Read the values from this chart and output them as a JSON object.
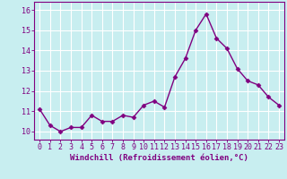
{
  "x": [
    0,
    1,
    2,
    3,
    4,
    5,
    6,
    7,
    8,
    9,
    10,
    11,
    12,
    13,
    14,
    15,
    16,
    17,
    18,
    19,
    20,
    21,
    22,
    23
  ],
  "y": [
    11.1,
    10.3,
    10.0,
    10.2,
    10.2,
    10.8,
    10.5,
    10.5,
    10.8,
    10.7,
    11.3,
    11.5,
    11.2,
    12.7,
    13.6,
    15.0,
    15.8,
    14.6,
    14.1,
    13.1,
    12.5,
    12.3,
    11.7,
    11.3
  ],
  "line_color": "#800080",
  "marker": "D",
  "marker_size": 2.5,
  "line_width": 1.0,
  "xlabel": "Windchill (Refroidissement éolien,°C)",
  "xlabel_fontsize": 6.5,
  "tick_fontsize": 6,
  "ylim": [
    9.6,
    16.4
  ],
  "xlim": [
    -0.5,
    23.5
  ],
  "yticks": [
    10,
    11,
    12,
    13,
    14,
    15,
    16
  ],
  "xticks": [
    0,
    1,
    2,
    3,
    4,
    5,
    6,
    7,
    8,
    9,
    10,
    11,
    12,
    13,
    14,
    15,
    16,
    17,
    18,
    19,
    20,
    21,
    22,
    23
  ],
  "background_color": "#c8eef0",
  "grid_color": "#ffffff",
  "tick_color": "#800080",
  "label_color": "#800080",
  "spine_color": "#800080"
}
